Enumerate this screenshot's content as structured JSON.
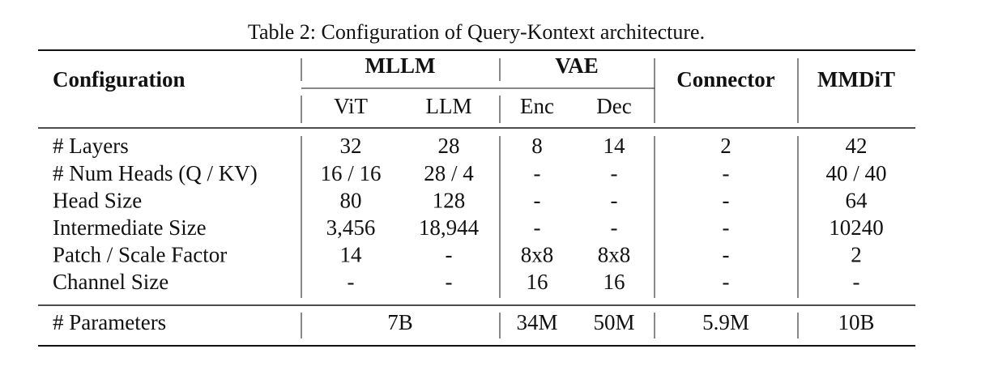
{
  "caption": "Table 2: Configuration of Query-Kontext architecture.",
  "header": {
    "row_label": "Configuration",
    "groups": [
      "MLLM",
      "VAE",
      "Connector",
      "MMDiT"
    ],
    "subcolumns": [
      "ViT",
      "LLM",
      "Enc",
      "Dec"
    ]
  },
  "rows": [
    {
      "label": "# Layers",
      "cells": [
        "32",
        "28",
        "8",
        "14",
        "2",
        "42"
      ]
    },
    {
      "label": "# Num Heads (Q / KV)",
      "cells": [
        "16 / 16",
        "28 / 4",
        "-",
        "-",
        "-",
        "40 / 40"
      ]
    },
    {
      "label": "Head Size",
      "cells": [
        "80",
        "128",
        "-",
        "-",
        "-",
        "64"
      ]
    },
    {
      "label": "Intermediate Size",
      "cells": [
        "3,456",
        "18,944",
        "-",
        "-",
        "-",
        "10240"
      ]
    },
    {
      "label": "Patch / Scale Factor",
      "cells": [
        "14",
        "-",
        "8x8",
        "8x8",
        "-",
        "2"
      ]
    },
    {
      "label": "Channel Size",
      "cells": [
        "-",
        "-",
        "16",
        "16",
        "-",
        "-"
      ]
    }
  ],
  "params": {
    "label": "# Parameters",
    "cells": [
      "7B",
      "34M",
      "50M",
      "5.9M",
      "10B"
    ]
  }
}
